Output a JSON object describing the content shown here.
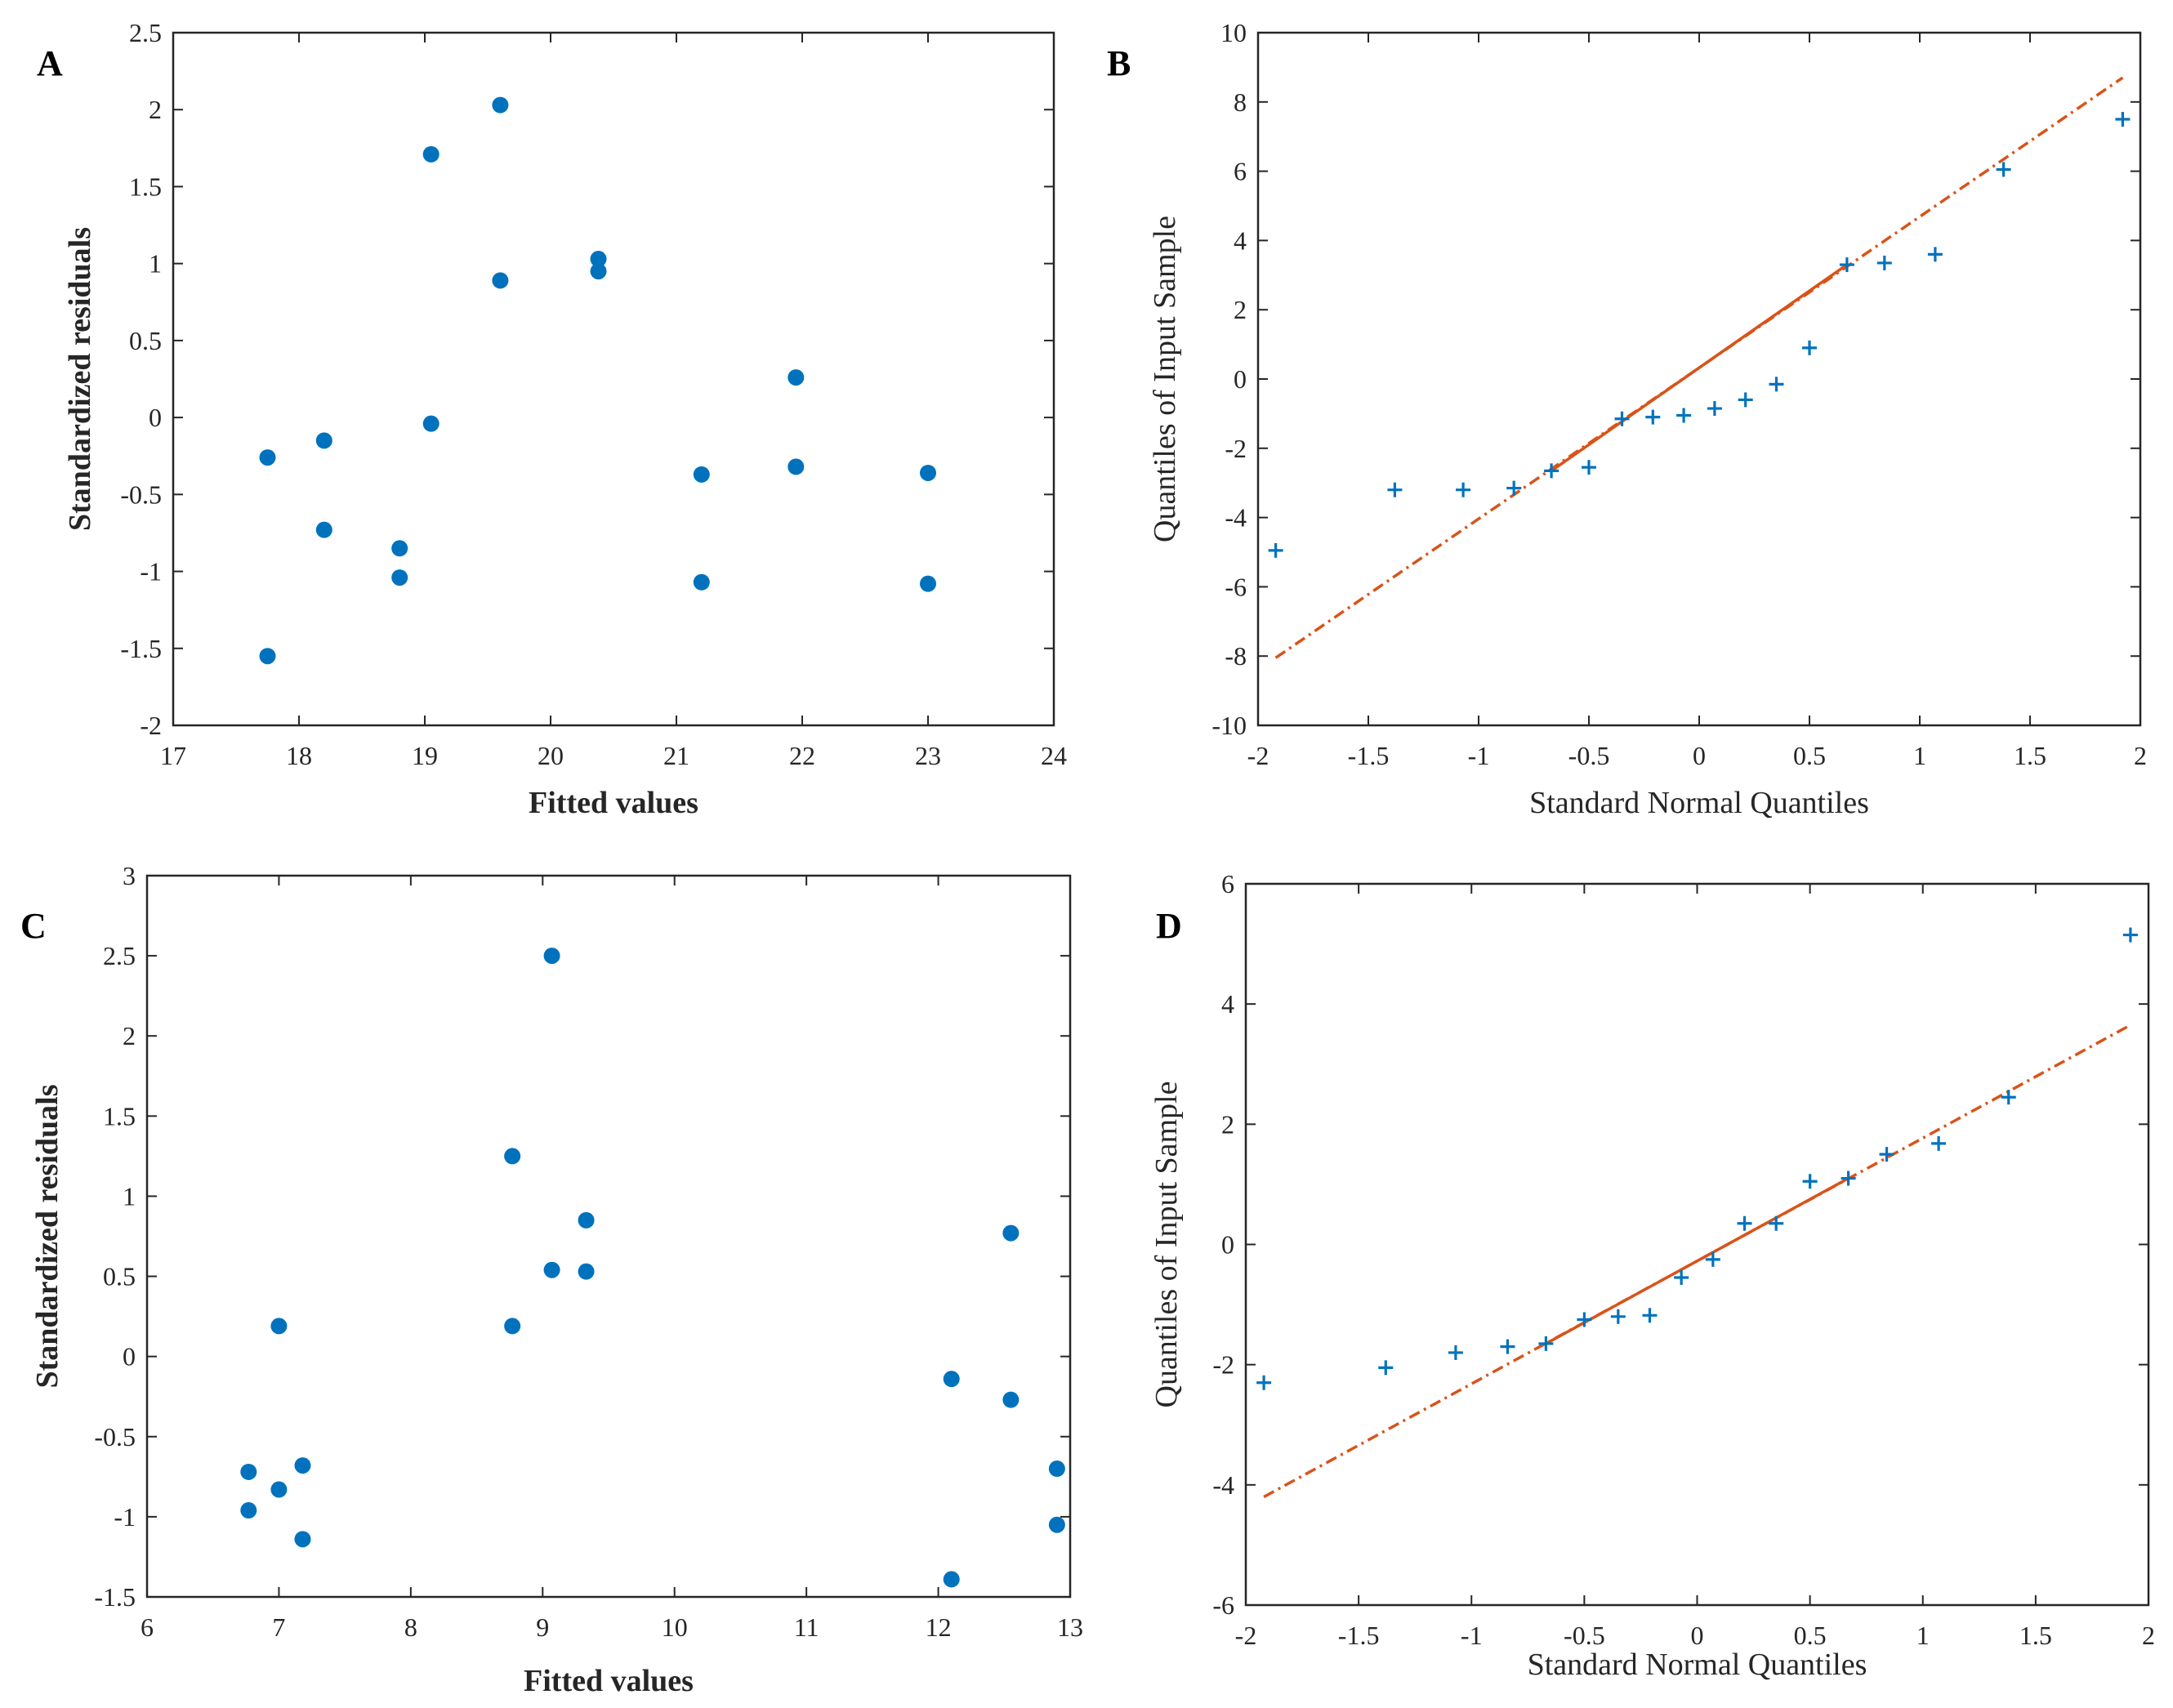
{
  "chart_data": [
    {
      "panel": "A",
      "type": "scatter",
      "xlabel": "Fitted values",
      "ylabel": "Standardized residuals",
      "xlim": [
        17,
        24
      ],
      "ylim": [
        -2,
        2.5
      ],
      "xticks": [
        17,
        18,
        19,
        20,
        21,
        22,
        23,
        24
      ],
      "yticks": [
        -2,
        -1.5,
        -1,
        -0.5,
        0,
        0.5,
        1,
        1.5,
        2,
        2.5
      ],
      "marker": "circle",
      "color": "#0072BD",
      "points": [
        [
          17.75,
          -0.26
        ],
        [
          17.75,
          -1.55
        ],
        [
          18.2,
          -0.15
        ],
        [
          18.2,
          -0.73
        ],
        [
          18.8,
          -0.85
        ],
        [
          18.8,
          -1.04
        ],
        [
          19.05,
          1.71
        ],
        [
          19.05,
          -0.04
        ],
        [
          19.6,
          2.03
        ],
        [
          19.6,
          0.89
        ],
        [
          20.38,
          1.03
        ],
        [
          20.38,
          0.95
        ],
        [
          21.2,
          -0.37
        ],
        [
          21.2,
          -1.07
        ],
        [
          21.95,
          0.26
        ],
        [
          21.95,
          -0.32
        ],
        [
          23.0,
          -0.36
        ],
        [
          23.0,
          -1.08
        ]
      ]
    },
    {
      "panel": "B",
      "type": "scatter",
      "subtype": "qq-plot",
      "xlabel": "Standard Normal Quantiles",
      "ylabel": "Quantiles of Input Sample",
      "xlim": [
        -2,
        2
      ],
      "ylim": [
        -10,
        10
      ],
      "xticks": [
        -2,
        -1.5,
        -1,
        -0.5,
        0,
        0.5,
        1,
        1.5,
        2
      ],
      "yticks": [
        -10,
        -8,
        -6,
        -4,
        -2,
        0,
        2,
        4,
        6,
        8,
        10
      ],
      "marker": "plus",
      "color": "#0072BD",
      "line_color": "#D95319",
      "points": [
        [
          -1.92,
          -4.95
        ],
        [
          -1.38,
          -3.2
        ],
        [
          -1.07,
          -3.2
        ],
        [
          -0.84,
          -3.15
        ],
        [
          -0.67,
          -2.65
        ],
        [
          -0.5,
          -2.55
        ],
        [
          -0.35,
          -1.15
        ],
        [
          -0.21,
          -1.1
        ],
        [
          -0.07,
          -1.05
        ],
        [
          0.07,
          -0.85
        ],
        [
          0.21,
          -0.6
        ],
        [
          0.35,
          -0.15
        ],
        [
          0.5,
          0.9
        ],
        [
          0.67,
          3.3
        ],
        [
          0.84,
          3.35
        ],
        [
          1.07,
          3.6
        ],
        [
          1.38,
          6.05
        ],
        [
          1.92,
          7.5
        ]
      ],
      "fit_line": {
        "solid": [
          [
            -0.67,
            -2.65
          ],
          [
            0.67,
            3.3
          ]
        ],
        "dashed": [
          [
            -1.92,
            -8.05
          ],
          [
            1.92,
            8.7
          ]
        ]
      }
    },
    {
      "panel": "C",
      "type": "scatter",
      "xlabel": "Fitted values",
      "ylabel": "Standardized residuals",
      "xlim": [
        6,
        13
      ],
      "ylim": [
        -1.5,
        3
      ],
      "xticks": [
        6,
        7,
        8,
        9,
        10,
        11,
        12,
        13
      ],
      "yticks": [
        -1.5,
        -1,
        -0.5,
        0,
        0.5,
        1,
        1.5,
        2,
        2.5,
        3
      ],
      "marker": "circle",
      "color": "#0072BD",
      "points": [
        [
          6.77,
          -0.72
        ],
        [
          6.77,
          -0.96
        ],
        [
          7.0,
          0.19
        ],
        [
          7.0,
          -0.83
        ],
        [
          7.18,
          -0.68
        ],
        [
          7.18,
          -1.14
        ],
        [
          8.77,
          1.25
        ],
        [
          8.77,
          0.19
        ],
        [
          9.07,
          2.5
        ],
        [
          9.07,
          0.54
        ],
        [
          9.33,
          0.85
        ],
        [
          9.33,
          0.53
        ],
        [
          12.1,
          -0.14
        ],
        [
          12.1,
          -1.39
        ],
        [
          12.55,
          0.77
        ],
        [
          12.55,
          -0.27
        ],
        [
          12.9,
          -0.7
        ],
        [
          12.9,
          -1.05
        ]
      ]
    },
    {
      "panel": "D",
      "type": "scatter",
      "subtype": "qq-plot",
      "xlabel": "Standard Normal Quantiles",
      "ylabel": "Quantiles of Input Sample",
      "xlim": [
        -2,
        2
      ],
      "ylim": [
        -6,
        6
      ],
      "xticks": [
        -2,
        -1.5,
        -1,
        -0.5,
        0,
        0.5,
        1,
        1.5,
        2
      ],
      "yticks": [
        -6,
        -4,
        -2,
        0,
        2,
        4,
        6
      ],
      "marker": "plus",
      "color": "#0072BD",
      "line_color": "#D95319",
      "points": [
        [
          -1.92,
          -2.3
        ],
        [
          -1.38,
          -2.05
        ],
        [
          -1.07,
          -1.8
        ],
        [
          -0.84,
          -1.7
        ],
        [
          -0.67,
          -1.65
        ],
        [
          -0.5,
          -1.25
        ],
        [
          -0.35,
          -1.2
        ],
        [
          -0.21,
          -1.18
        ],
        [
          -0.07,
          -0.55
        ],
        [
          0.07,
          -0.25
        ],
        [
          0.21,
          0.35
        ],
        [
          0.35,
          0.35
        ],
        [
          0.5,
          1.05
        ],
        [
          0.67,
          1.1
        ],
        [
          0.84,
          1.5
        ],
        [
          1.07,
          1.68
        ],
        [
          1.38,
          2.45
        ],
        [
          1.92,
          5.15
        ]
      ],
      "fit_line": {
        "solid": [
          [
            -0.67,
            -1.65
          ],
          [
            0.67,
            1.1
          ]
        ],
        "dashed": [
          [
            -1.92,
            -4.2
          ],
          [
            1.92,
            3.65
          ]
        ]
      }
    }
  ]
}
